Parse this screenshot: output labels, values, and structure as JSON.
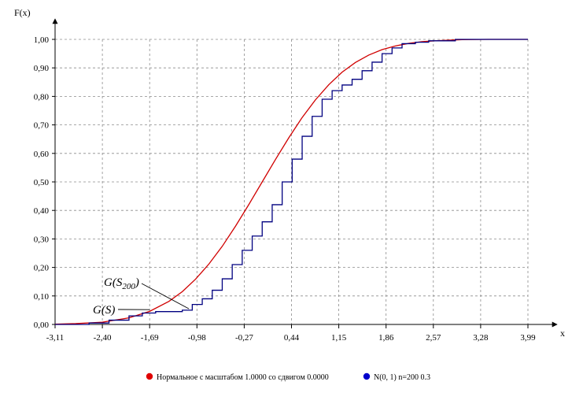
{
  "chart_data": {
    "type": "line",
    "title": "",
    "xlabel": "x",
    "ylabel": "F(x)",
    "xlim": [
      -3.11,
      3.99
    ],
    "ylim": [
      0,
      1
    ],
    "grid": true,
    "legend_position": "bottom-center",
    "x_ticks": [
      "-3,11",
      "-2,40",
      "-1,69",
      "-0,98",
      "-0,27",
      "0,44",
      "1,15",
      "1,86",
      "2,57",
      "3,28",
      "3,99"
    ],
    "y_ticks": [
      "0,00",
      "0,10",
      "0,20",
      "0,30",
      "0,40",
      "0,50",
      "0,60",
      "0,70",
      "0,80",
      "0,90",
      "1,00"
    ],
    "series": [
      {
        "name": "Нормальное с масштабом 1.0000 со сдвигом 0.0000",
        "color": "#d00000",
        "kind": "smooth-cdf",
        "x": [
          -3.11,
          -2.8,
          -2.4,
          -2.0,
          -1.69,
          -1.4,
          -1.2,
          -1.0,
          -0.8,
          -0.6,
          -0.4,
          -0.2,
          0.0,
          0.2,
          0.4,
          0.6,
          0.8,
          1.0,
          1.2,
          1.4,
          1.6,
          1.8,
          2.0,
          2.2,
          2.4,
          2.6,
          2.8,
          3.0,
          3.4,
          3.99
        ],
        "y": [
          0.001,
          0.003,
          0.008,
          0.023,
          0.046,
          0.081,
          0.115,
          0.159,
          0.212,
          0.274,
          0.345,
          0.421,
          0.5,
          0.579,
          0.655,
          0.726,
          0.788,
          0.841,
          0.885,
          0.919,
          0.945,
          0.964,
          0.977,
          0.986,
          0.992,
          0.995,
          0.997,
          0.999,
          1.0,
          1.0
        ]
      },
      {
        "name": "N(0, 1) n=200 0.3",
        "color": "#000080",
        "kind": "step-ecdf",
        "x": [
          -3.11,
          -2.6,
          -2.3,
          -2.0,
          -1.8,
          -1.6,
          -1.4,
          -1.2,
          -1.05,
          -0.9,
          -0.75,
          -0.6,
          -0.45,
          -0.3,
          -0.15,
          0.0,
          0.15,
          0.3,
          0.45,
          0.6,
          0.75,
          0.9,
          1.05,
          1.2,
          1.35,
          1.5,
          1.65,
          1.8,
          1.95,
          2.1,
          2.3,
          2.5,
          2.7,
          2.9,
          3.1,
          3.99
        ],
        "y": [
          0.0,
          0.005,
          0.015,
          0.03,
          0.04,
          0.045,
          0.045,
          0.05,
          0.07,
          0.09,
          0.12,
          0.16,
          0.21,
          0.26,
          0.31,
          0.36,
          0.42,
          0.5,
          0.58,
          0.66,
          0.73,
          0.79,
          0.82,
          0.84,
          0.86,
          0.89,
          0.92,
          0.95,
          0.97,
          0.985,
          0.99,
          0.995,
          0.995,
          1.0,
          1.0,
          1.0
        ]
      }
    ],
    "annotations": [
      {
        "base": "G(S",
        "sub": "200",
        "suffix": ")",
        "target_x": -1.1,
        "target_y": 0.055
      },
      {
        "base": "G(S)",
        "sub": "",
        "suffix": "",
        "target_x": -1.69,
        "target_y": 0.052
      }
    ]
  }
}
